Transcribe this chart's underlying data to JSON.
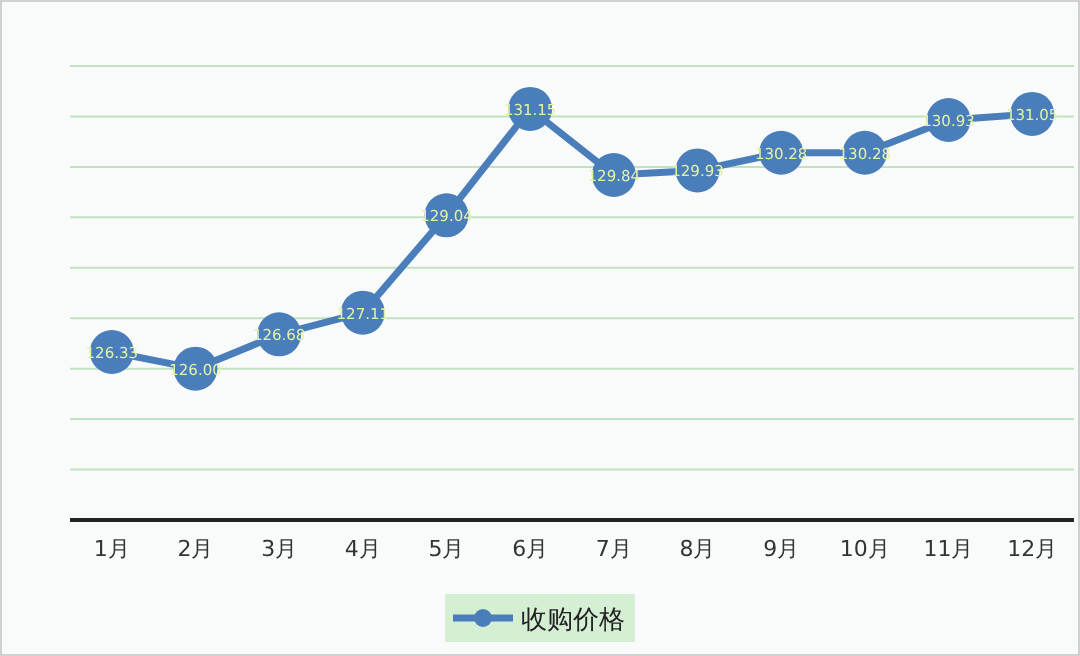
{
  "chart_data": {
    "type": "line",
    "categories": [
      "1月",
      "2月",
      "3月",
      "4月",
      "5月",
      "6月",
      "7月",
      "8月",
      "9月",
      "10月",
      "11月",
      "12月"
    ],
    "series": [
      {
        "name": "收购价格",
        "color": "#4a7ebb",
        "values": [
          126.33,
          126.0,
          126.68,
          127.11,
          129.04,
          131.15,
          129.84,
          129.93,
          130.28,
          130.28,
          130.93,
          131.05
        ],
        "value_labels": [
          "126.33",
          "126.00",
          "126.68",
          "127.11",
          "129.04",
          "131.15",
          "129.84",
          "129.93",
          "130.28",
          "130.28",
          "130.93",
          "131.05"
        ]
      }
    ],
    "ylim": [
      123,
      132
    ],
    "yticks": [
      {
        "value": 123,
        "label": null
      },
      {
        "value": 124,
        "label": null
      },
      {
        "value": 125,
        "label": null
      },
      {
        "value": 126,
        "label": null
      },
      {
        "value": 127,
        "label": null
      },
      {
        "value": 128,
        "label": null
      },
      {
        "value": 129,
        "label": null
      },
      {
        "value": 130,
        "label": null
      },
      {
        "value": 131,
        "label": null
      },
      {
        "value": 132,
        "label": null
      }
    ],
    "tick_labels": "x",
    "grid": "y",
    "legend": "bottom",
    "marker": "circle",
    "line_style": "solid"
  }
}
